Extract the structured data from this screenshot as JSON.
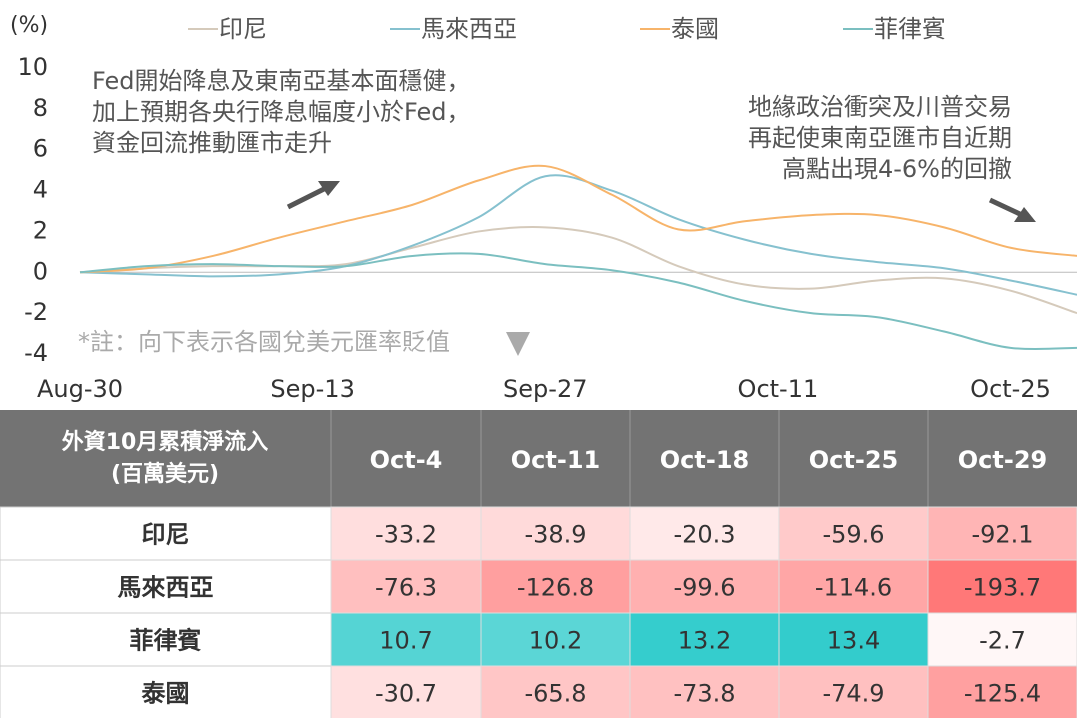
{
  "chart_data": {
    "type": "line",
    "y_label": "(%)",
    "x": [
      0,
      4,
      8,
      12,
      16,
      20,
      24,
      28,
      32,
      36,
      40,
      44,
      48,
      52,
      56,
      60
    ],
    "xlim": [
      0,
      60
    ],
    "xticks": [
      {
        "value": 0,
        "label": "Aug-30"
      },
      {
        "value": 14,
        "label": "Sep-13"
      },
      {
        "value": 28,
        "label": "Sep-27"
      },
      {
        "value": 42,
        "label": "Oct-11"
      },
      {
        "value": 56,
        "label": "Oct-25"
      }
    ],
    "ylim": [
      -4,
      10
    ],
    "yticks": [
      10,
      8,
      6,
      4,
      2,
      0,
      -2,
      -4
    ],
    "zero_line": true,
    "series": [
      {
        "name": "印尼",
        "color": "#d5cabb",
        "values": [
          0,
          0.2,
          0.3,
          0.3,
          0.4,
          1.2,
          2.0,
          2.2,
          1.7,
          0.3,
          -0.6,
          -0.8,
          -0.4,
          -0.3,
          -0.9,
          -2.0
        ]
      },
      {
        "name": "馬來西亞",
        "color": "#86c1cf",
        "values": [
          0,
          -0.1,
          -0.2,
          -0.1,
          0.3,
          1.3,
          2.7,
          4.7,
          4.0,
          2.6,
          1.6,
          0.9,
          0.5,
          0.2,
          -0.4,
          -1.1
        ]
      },
      {
        "name": "泰國",
        "color": "#f7b46a",
        "values": [
          0,
          0.2,
          0.8,
          1.7,
          2.5,
          3.3,
          4.5,
          5.2,
          3.8,
          2.1,
          2.5,
          2.8,
          2.8,
          2.2,
          1.2,
          0.8
        ]
      },
      {
        "name": "菲律賓",
        "color": "#7bbfc0",
        "values": [
          0,
          0.3,
          0.4,
          0.3,
          0.3,
          0.8,
          0.9,
          0.4,
          0.1,
          -0.5,
          -1.4,
          -2.0,
          -2.2,
          -2.9,
          -3.7,
          -3.7
        ]
      }
    ],
    "annotations": [
      [
        "Fed開始降息及東南亞基本面穩健，",
        "加上預期各央行降息幅度小於Fed，",
        "資金回流推動匯市走升"
      ],
      [
        "地緣政治衝突及川普交易",
        "再起使東南亞匯市自近期",
        "高點出現4-6%的回撤"
      ]
    ],
    "note": "*註：向下表示各國兌美元匯率貶值"
  },
  "table": {
    "header": [
      "外資10月累積淨流入",
      "(百萬美元)"
    ],
    "columns": [
      "Oct-4",
      "Oct-11",
      "Oct-18",
      "Oct-25",
      "Oct-29"
    ],
    "negative_color": "#ff7878",
    "positive_color": "#33cccc",
    "rows": [
      {
        "label": "印尼",
        "values": [
          -33.2,
          -38.9,
          -20.3,
          -59.6,
          -92.1
        ]
      },
      {
        "label": "馬來西亞",
        "values": [
          -76.3,
          -126.8,
          -99.6,
          -114.6,
          -193.7
        ]
      },
      {
        "label": "菲律賓",
        "values": [
          10.7,
          10.2,
          13.2,
          13.4,
          -2.7
        ]
      },
      {
        "label": "泰國",
        "values": [
          -30.7,
          -65.8,
          -73.8,
          -74.9,
          -125.4
        ]
      }
    ]
  }
}
